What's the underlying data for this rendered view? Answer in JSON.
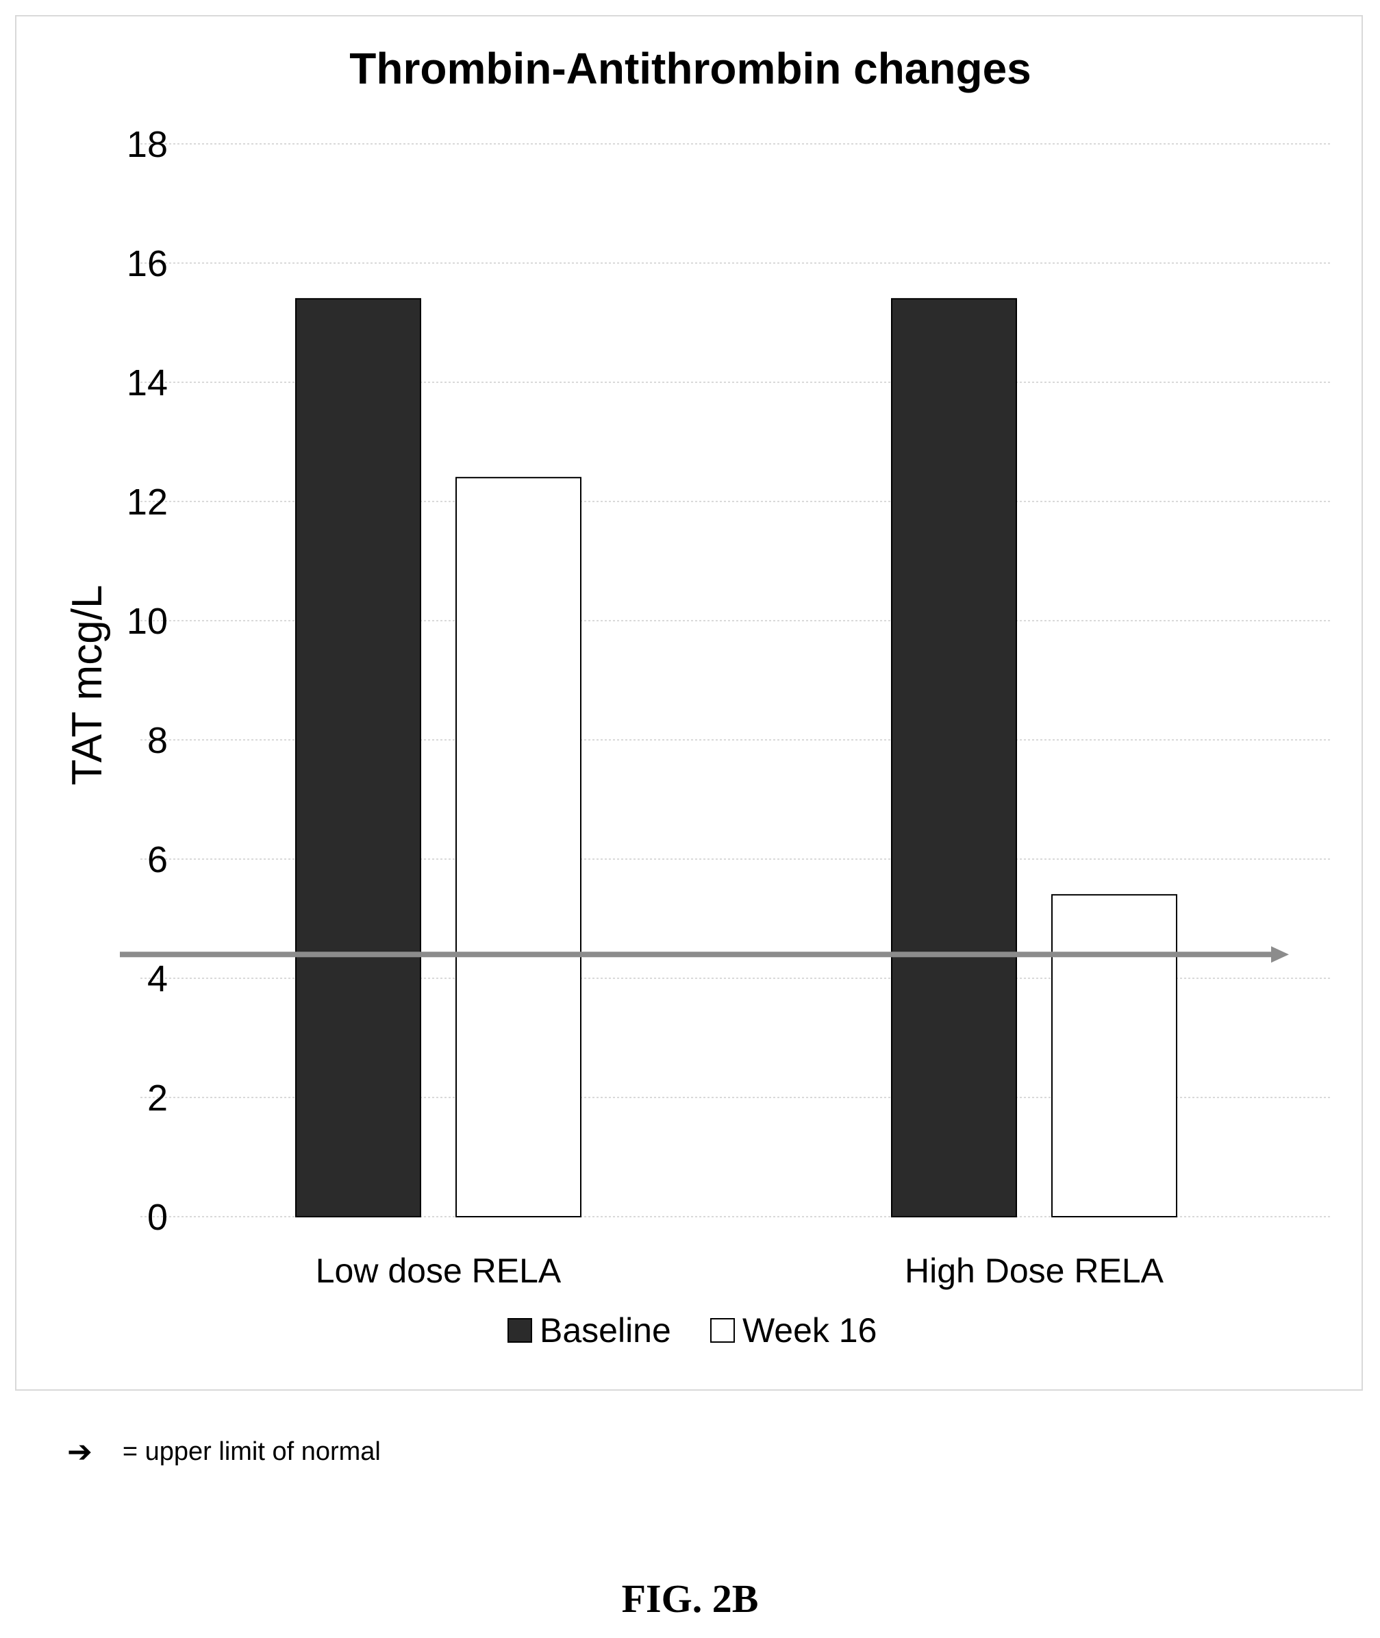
{
  "chart_data": {
    "type": "bar",
    "title": "Thrombin-Antithrombin changes",
    "xlabel": "",
    "ylabel": "TAT mcg/L",
    "categories": [
      "Low dose RELA",
      "High Dose RELA"
    ],
    "series": [
      {
        "name": "Baseline",
        "values": [
          15.4,
          15.4
        ],
        "color": "#2b2b2b"
      },
      {
        "name": "Week 16",
        "values": [
          12.4,
          5.4
        ],
        "color": "#ffffff"
      }
    ],
    "ylim": [
      0,
      18
    ],
    "yticks": [
      "0",
      "2",
      "4",
      "6",
      "8",
      "10",
      "12",
      "14",
      "16",
      "18"
    ],
    "reference_line": {
      "value": 4.4,
      "meaning": "upper limit of normal",
      "color": "#8c8c8c"
    },
    "grid": true,
    "legend_position": "bottom"
  },
  "footnote": {
    "arrow_icon": "arrow-right-icon",
    "text": "= upper limit of normal"
  },
  "figure_label": "FIG. 2B"
}
